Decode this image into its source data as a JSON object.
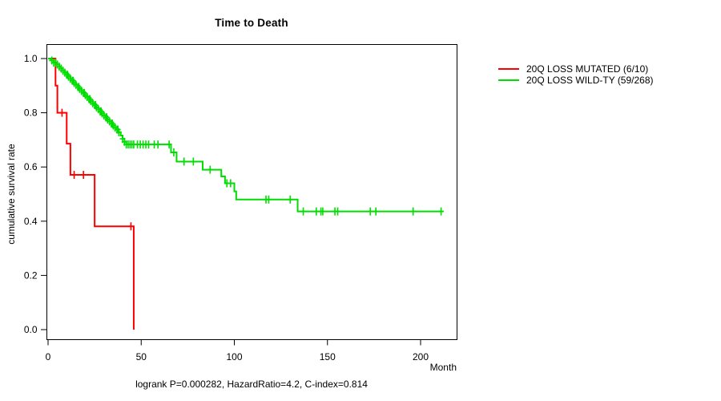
{
  "title": "Time to Death",
  "annotation": "logrank P=0.000282, HazardRatio=4.2, C-index=0.814",
  "legend": {
    "items": [
      {
        "label": "20Q LOSS MUTATED (6/10)",
        "color": "#ff0000"
      },
      {
        "label": "20Q LOSS WILD-TY (59/268)",
        "color": "#00dd00"
      }
    ]
  },
  "chart_data": {
    "type": "line",
    "subtype": "kaplan-meier-step",
    "title": "Time to Death",
    "xlabel": "Month",
    "ylabel": "cumulative survival rate",
    "xlim": [
      0,
      220
    ],
    "ylim": [
      0.0,
      1.0
    ],
    "x_ticks": [
      0,
      50,
      100,
      150,
      200
    ],
    "y_ticks": [
      "0.0",
      "0.2",
      "0.4",
      "0.6",
      "0.8",
      "1.0"
    ],
    "grid": false,
    "legend_position": "right-outside",
    "frame_color": "#000000",
    "stats": {
      "logrank_p": "0.000282",
      "hazard_ratio": "4.2",
      "c_index": "0.814"
    },
    "series": [
      {
        "name": "20Q LOSS MUTATED (6/10)",
        "slug": "mutated-curve",
        "color": "#ff0000",
        "n_events": "6/10",
        "end_month": 46,
        "steps": [
          [
            0,
            1.0
          ],
          [
            4,
            0.9
          ],
          [
            5,
            0.8
          ],
          [
            10,
            0.686
          ],
          [
            12,
            0.571
          ],
          [
            25,
            0.381
          ],
          [
            46,
            0.0
          ]
        ],
        "censor_months": [
          7.5,
          14,
          19,
          44.5
        ]
      },
      {
        "name": "20Q LOSS WILD-TY (59/268)",
        "slug": "wildtype-curve",
        "color": "#00dd00",
        "n_events": "59/268",
        "end_month": 212,
        "steps": [
          [
            0,
            1.0
          ],
          [
            1.5,
            0.993
          ],
          [
            3,
            0.985
          ],
          [
            4.5,
            0.978
          ],
          [
            6,
            0.97
          ],
          [
            7,
            0.963
          ],
          [
            8,
            0.955
          ],
          [
            9,
            0.948
          ],
          [
            10,
            0.94
          ],
          [
            11,
            0.933
          ],
          [
            12,
            0.925
          ],
          [
            13,
            0.918
          ],
          [
            14,
            0.91
          ],
          [
            15,
            0.903
          ],
          [
            16,
            0.895
          ],
          [
            17,
            0.888
          ],
          [
            18,
            0.88
          ],
          [
            19,
            0.873
          ],
          [
            20,
            0.865
          ],
          [
            21,
            0.858
          ],
          [
            22,
            0.85
          ],
          [
            23,
            0.843
          ],
          [
            24,
            0.835
          ],
          [
            25,
            0.828
          ],
          [
            26,
            0.82
          ],
          [
            27,
            0.813
          ],
          [
            28,
            0.805
          ],
          [
            29,
            0.798
          ],
          [
            30,
            0.79
          ],
          [
            31,
            0.783
          ],
          [
            32,
            0.775
          ],
          [
            33,
            0.768
          ],
          [
            34,
            0.76
          ],
          [
            35,
            0.753
          ],
          [
            36,
            0.745
          ],
          [
            37,
            0.738
          ],
          [
            38,
            0.728
          ],
          [
            39,
            0.716
          ],
          [
            40,
            0.704
          ],
          [
            41,
            0.693
          ],
          [
            42,
            0.683
          ],
          [
            66,
            0.654
          ],
          [
            69,
            0.62
          ],
          [
            83,
            0.59
          ],
          [
            93,
            0.565
          ],
          [
            95,
            0.54
          ],
          [
            100,
            0.51
          ],
          [
            101,
            0.48
          ],
          [
            134,
            0.436
          ]
        ],
        "censor_months": [
          2,
          3,
          4,
          5,
          6,
          7,
          8,
          9,
          10,
          10.5,
          11,
          12,
          13,
          13.5,
          14,
          15,
          16,
          16.5,
          17,
          18,
          19,
          19.5,
          20,
          21,
          22,
          22.5,
          23,
          24,
          25,
          25.5,
          26,
          27,
          28,
          28.5,
          29,
          30,
          31,
          31.5,
          32,
          33,
          34,
          34.5,
          35,
          36,
          37,
          37.5,
          38,
          40,
          41,
          42,
          43,
          44,
          45,
          46,
          48,
          49.5,
          51,
          52.5,
          54,
          57,
          59,
          65,
          67.5,
          73,
          78,
          87,
          96,
          98,
          117,
          118.5,
          130,
          137,
          144,
          146.5,
          147.5,
          154,
          155.5,
          173,
          176,
          196,
          211
        ]
      }
    ]
  }
}
